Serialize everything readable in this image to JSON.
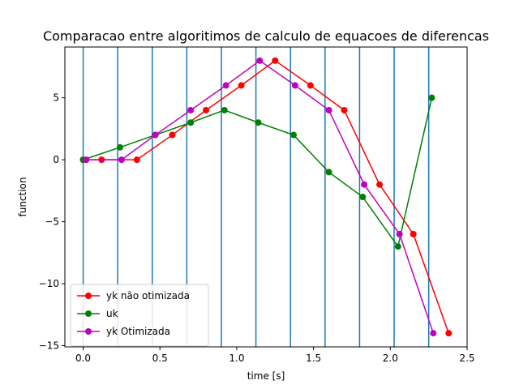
{
  "chart_data": {
    "type": "line",
    "title": "Comparacao entre algoritimos de calculo de equacoes de diferencas",
    "xlabel": "time [s]",
    "ylabel": "function",
    "xlim": [
      -0.119,
      2.5
    ],
    "ylim": [
      -15.1,
      9.1
    ],
    "xticks": [
      0.0,
      0.5,
      1.0,
      1.5,
      2.0,
      2.5
    ],
    "xtick_labels": [
      "0.0",
      "0.5",
      "1.0",
      "1.5",
      "2.0",
      "2.5"
    ],
    "yticks": [
      -15,
      -10,
      -5,
      0,
      5
    ],
    "ytick_labels": [
      "−15",
      "−10",
      "−5",
      "0",
      "5"
    ],
    "vertical_lines": [
      0.0,
      0.225,
      0.45,
      0.675,
      0.9,
      1.125,
      1.35,
      1.575,
      1.8,
      2.025,
      2.25
    ],
    "vline_color": "#1f77b4",
    "grid": false,
    "legend_position": "lower-left",
    "series": [
      {
        "name": "yk não otimizada",
        "color": "#ff0000",
        "x": [
          0.0,
          0.12,
          0.35,
          0.58,
          0.8,
          1.03,
          1.25,
          1.48,
          1.7,
          1.93,
          2.15,
          2.38
        ],
        "y": [
          0,
          0,
          0,
          2,
          4,
          6,
          8,
          6,
          4,
          -2,
          -6,
          -14
        ]
      },
      {
        "name": "uk",
        "color": "#008000",
        "x": [
          0.0,
          0.24,
          0.47,
          0.7,
          0.92,
          1.14,
          1.37,
          1.6,
          1.82,
          2.05,
          2.27
        ],
        "y": [
          0,
          1,
          2,
          3,
          4,
          3,
          2,
          -1,
          -3,
          -7,
          5
        ]
      },
      {
        "name": "yk Otimizada",
        "color": "#bf00bf",
        "x": [
          0.02,
          0.25,
          0.47,
          0.7,
          0.93,
          1.15,
          1.38,
          1.6,
          1.83,
          2.06,
          2.28
        ],
        "y": [
          0,
          0,
          2,
          4,
          6,
          8,
          6,
          4,
          -2,
          -6,
          -14
        ]
      }
    ]
  }
}
